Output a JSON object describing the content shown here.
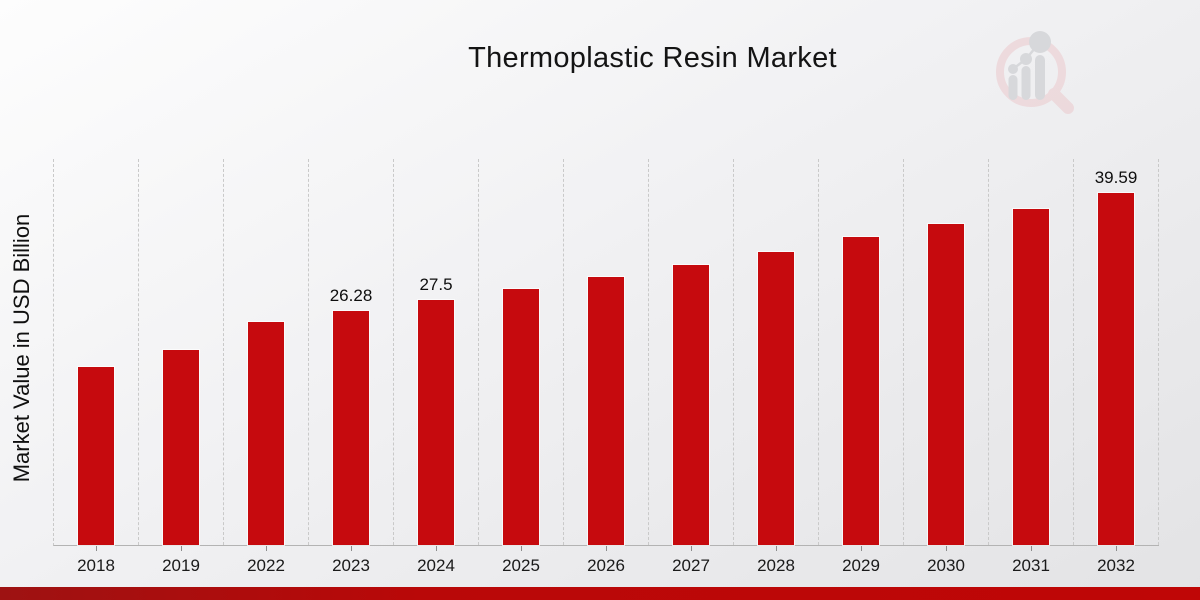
{
  "header": {
    "title": "Thermoplastic Resin Market",
    "logo_name": "market-research-magnifier-logo"
  },
  "colors": {
    "bar": "#c60a0e",
    "banner_gradient_left": "#9e1212",
    "banner_gradient_right": "#bf0606",
    "gridline": "#c9c9c9",
    "logo_ring_pink": "#ecc9cd",
    "logo_glyph_gray": "#ced0d4",
    "text": "#141414"
  },
  "chart_data": {
    "type": "bar",
    "title": "Thermoplastic Resin Market",
    "xlabel": "",
    "ylabel": "Market Value in USD Billion",
    "categories": [
      "2018",
      "2019",
      "2022",
      "2023",
      "2024",
      "2025",
      "2026",
      "2027",
      "2028",
      "2029",
      "2030",
      "2031",
      "2032"
    ],
    "values": [
      20.0,
      21.9,
      25.1,
      26.28,
      27.5,
      28.8,
      30.1,
      31.5,
      33.0,
      34.6,
      36.1,
      37.8,
      39.59
    ],
    "data_labels": [
      "",
      "",
      "",
      "26.28",
      "27.5",
      "",
      "",
      "",
      "",
      "",
      "",
      "",
      "39.59"
    ],
    "ylim": [
      0,
      43.4
    ],
    "bar_color": "#c60a0e",
    "grid": "vertical-dashed",
    "legend": "none",
    "y_axis_ticks_visible": false
  }
}
